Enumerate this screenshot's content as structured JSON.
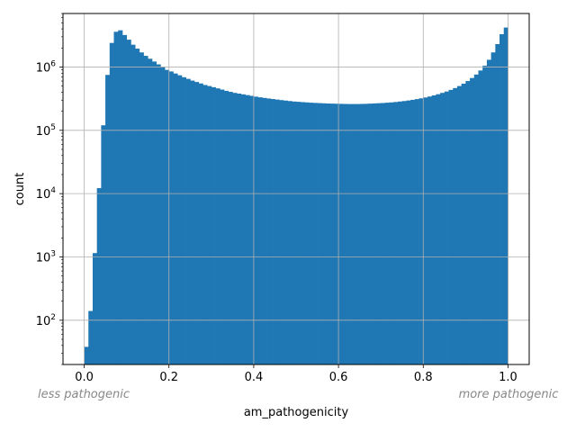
{
  "chart_data": {
    "type": "bar",
    "subtype": "histogram",
    "xlabel": "am_pathogenicity",
    "ylabel": "count",
    "xlim": [
      -0.05,
      1.05
    ],
    "ylim": [
      20,
      7000000
    ],
    "yscale": "log",
    "grid": true,
    "bar_color": "#1f77b4",
    "bin_width": 0.01,
    "xticks": [
      {
        "value": 0.0,
        "label": "0.0"
      },
      {
        "value": 0.2,
        "label": "0.2"
      },
      {
        "value": 0.4,
        "label": "0.4"
      },
      {
        "value": 0.6,
        "label": "0.6"
      },
      {
        "value": 0.8,
        "label": "0.8"
      },
      {
        "value": 1.0,
        "label": "1.0"
      }
    ],
    "yticks": [
      {
        "value": 100,
        "base": "10",
        "exp": "2"
      },
      {
        "value": 1000,
        "base": "10",
        "exp": "3"
      },
      {
        "value": 10000,
        "base": "10",
        "exp": "4"
      },
      {
        "value": 100000,
        "base": "10",
        "exp": "5"
      },
      {
        "value": 1000000,
        "base": "10",
        "exp": "6"
      }
    ],
    "annotations": {
      "left": "less pathogenic",
      "right": "more pathogenic"
    },
    "bin_starts": [
      0.0,
      0.01,
      0.02,
      0.03,
      0.04,
      0.05,
      0.06,
      0.07,
      0.08,
      0.09,
      0.1,
      0.11,
      0.12,
      0.13,
      0.14,
      0.15,
      0.16,
      0.17,
      0.18,
      0.19,
      0.2,
      0.21,
      0.22,
      0.23,
      0.24,
      0.25,
      0.26,
      0.27,
      0.28,
      0.29,
      0.3,
      0.31,
      0.32,
      0.33,
      0.34,
      0.35,
      0.36,
      0.37,
      0.38,
      0.39,
      0.4,
      0.41,
      0.42,
      0.43,
      0.44,
      0.45,
      0.46,
      0.47,
      0.48,
      0.49,
      0.5,
      0.51,
      0.52,
      0.53,
      0.54,
      0.55,
      0.56,
      0.57,
      0.58,
      0.59,
      0.6,
      0.61,
      0.62,
      0.63,
      0.64,
      0.65,
      0.66,
      0.67,
      0.68,
      0.69,
      0.7,
      0.71,
      0.72,
      0.73,
      0.74,
      0.75,
      0.76,
      0.77,
      0.78,
      0.79,
      0.8,
      0.81,
      0.82,
      0.83,
      0.84,
      0.85,
      0.86,
      0.87,
      0.88,
      0.89,
      0.9,
      0.91,
      0.92,
      0.93,
      0.94,
      0.95,
      0.96,
      0.97,
      0.98,
      0.99
    ],
    "counts": [
      38,
      140,
      1150,
      12200,
      120000,
      750000,
      2400000,
      3600000,
      3800000,
      3200000,
      2700000,
      2250000,
      1950000,
      1700000,
      1500000,
      1350000,
      1220000,
      1100000,
      1000000,
      900000,
      850000,
      790000,
      740000,
      690000,
      650000,
      610000,
      580000,
      550000,
      520000,
      500000,
      480000,
      460000,
      440000,
      420000,
      405000,
      390000,
      380000,
      370000,
      360000,
      350000,
      340000,
      332000,
      325000,
      318000,
      312000,
      306000,
      300000,
      295000,
      290000,
      285000,
      282000,
      279000,
      276000,
      273000,
      271000,
      269000,
      267000,
      265000,
      264000,
      263000,
      262000,
      261000,
      260000,
      260000,
      260000,
      261000,
      262000,
      264000,
      266000,
      268000,
      270000,
      273000,
      276000,
      280000,
      285000,
      290000,
      296000,
      303000,
      311000,
      320000,
      330000,
      342000,
      356000,
      372000,
      390000,
      410000,
      435000,
      465000,
      500000,
      545000,
      600000,
      670000,
      760000,
      880000,
      1050000,
      1300000,
      1700000,
      2300000,
      3300000,
      4200000
    ]
  }
}
